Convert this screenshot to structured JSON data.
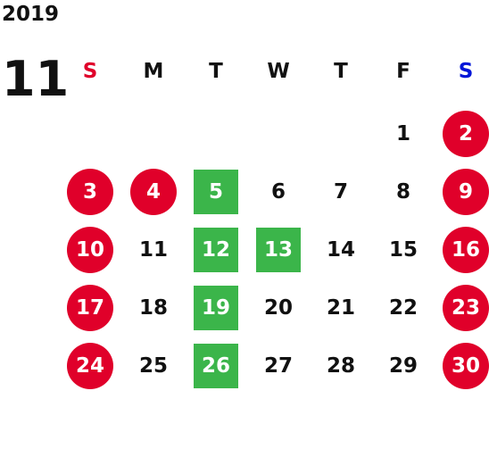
{
  "calendar": {
    "year": "2019",
    "month": "11",
    "weekdays": [
      {
        "label": "S",
        "color": "#e0002a"
      },
      {
        "label": "M",
        "color": "#111111"
      },
      {
        "label": "T",
        "color": "#111111"
      },
      {
        "label": "W",
        "color": "#111111"
      },
      {
        "label": "T",
        "color": "#111111"
      },
      {
        "label": "F",
        "color": "#111111"
      },
      {
        "label": "S",
        "color": "#0016d8"
      }
    ],
    "first_weekday_index": 5,
    "days_in_month": 30,
    "colors": {
      "holiday": "#e0002a",
      "event": "#3bb54a",
      "text": "#111111",
      "marked_text": "#ffffff"
    },
    "days": [
      {
        "day": "1",
        "style": "normal"
      },
      {
        "day": "2",
        "style": "holiday"
      },
      {
        "day": "3",
        "style": "holiday"
      },
      {
        "day": "4",
        "style": "holiday"
      },
      {
        "day": "5",
        "style": "event"
      },
      {
        "day": "6",
        "style": "normal"
      },
      {
        "day": "7",
        "style": "normal"
      },
      {
        "day": "8",
        "style": "normal"
      },
      {
        "day": "9",
        "style": "holiday"
      },
      {
        "day": "10",
        "style": "holiday"
      },
      {
        "day": "11",
        "style": "normal"
      },
      {
        "day": "12",
        "style": "event"
      },
      {
        "day": "13",
        "style": "event"
      },
      {
        "day": "14",
        "style": "normal"
      },
      {
        "day": "15",
        "style": "normal"
      },
      {
        "day": "16",
        "style": "holiday"
      },
      {
        "day": "17",
        "style": "holiday"
      },
      {
        "day": "18",
        "style": "normal"
      },
      {
        "day": "19",
        "style": "event"
      },
      {
        "day": "20",
        "style": "normal"
      },
      {
        "day": "21",
        "style": "normal"
      },
      {
        "day": "22",
        "style": "normal"
      },
      {
        "day": "23",
        "style": "holiday"
      },
      {
        "day": "24",
        "style": "holiday"
      },
      {
        "day": "25",
        "style": "normal"
      },
      {
        "day": "26",
        "style": "event"
      },
      {
        "day": "27",
        "style": "normal"
      },
      {
        "day": "28",
        "style": "normal"
      },
      {
        "day": "29",
        "style": "normal"
      },
      {
        "day": "30",
        "style": "holiday"
      }
    ]
  }
}
